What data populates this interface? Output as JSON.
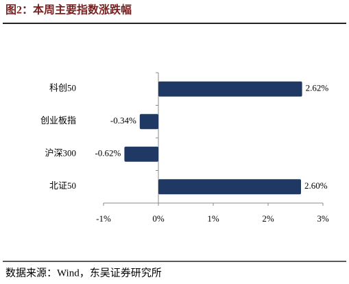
{
  "chart_data": {
    "type": "barh",
    "title": "图2：本周主要指数涨跌幅",
    "source": "数据来源：Wind，东吴证券研究所",
    "categories": [
      "科创50",
      "创业板指",
      "沪深300",
      "北证50"
    ],
    "values": [
      2.62,
      -0.34,
      -0.62,
      2.6
    ],
    "value_labels": [
      "2.62%",
      "-0.34%",
      "-0.62%",
      "2.60%"
    ],
    "color": "#1f3864",
    "xlim": [
      -1,
      3
    ],
    "xticks": [
      {
        "value": -1,
        "label": "-1%"
      },
      {
        "value": 0,
        "label": "0%"
      },
      {
        "value": 1,
        "label": "1%"
      },
      {
        "value": 2,
        "label": "2%"
      },
      {
        "value": 3,
        "label": "3%"
      }
    ]
  }
}
